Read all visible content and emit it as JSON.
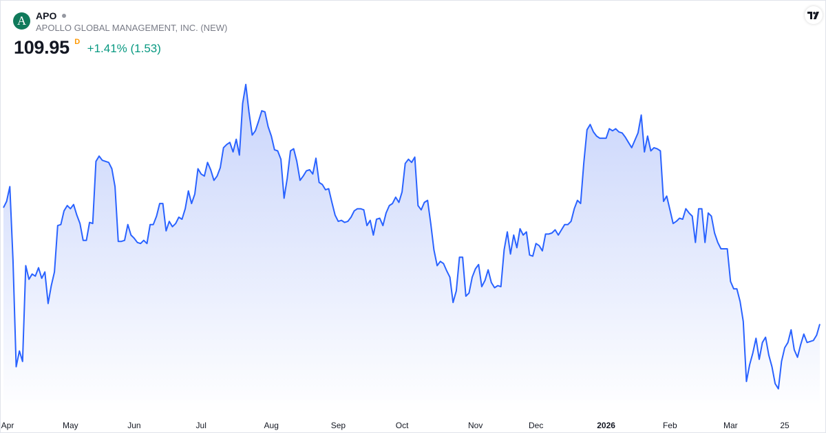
{
  "symbol": {
    "ticker": "APO",
    "logo_letter": "A",
    "company_name": "APOLLO GLOBAL MANAGEMENT, INC. (NEW)",
    "price": "109.95",
    "price_flag": "D",
    "change": "+1.41% (1.53)"
  },
  "colors": {
    "line": "#2962ff",
    "area_top": "#c8d4fb",
    "area_bottom": "#ffffff",
    "change_positive": "#089981",
    "logo_bg": "#107a5b",
    "price_flag": "#ff9800"
  },
  "icons": {
    "logo": "apollo-logo-icon",
    "status": "market-status-dot-icon",
    "brand": "tradingview-logo-icon"
  },
  "chart_data": {
    "type": "area",
    "grid": false,
    "y_axis_visible": false,
    "ylim": [
      103,
      134
    ],
    "x_axis_labels": [
      {
        "text": "Apr",
        "i": 0,
        "bold": false
      },
      {
        "text": "May",
        "i": 21,
        "bold": false
      },
      {
        "text": "Jun",
        "i": 41,
        "bold": false
      },
      {
        "text": "Jul",
        "i": 62,
        "bold": false
      },
      {
        "text": "Aug",
        "i": 84,
        "bold": false
      },
      {
        "text": "Sep",
        "i": 105,
        "bold": false
      },
      {
        "text": "Oct",
        "i": 125,
        "bold": false
      },
      {
        "text": "Nov",
        "i": 148,
        "bold": false
      },
      {
        "text": "Dec",
        "i": 167,
        "bold": false
      },
      {
        "text": "2026",
        "i": 189,
        "bold": true
      },
      {
        "text": "Feb",
        "i": 209,
        "bold": false
      },
      {
        "text": "Mar",
        "i": 228,
        "bold": false
      },
      {
        "text": "25",
        "i": 245,
        "bold": false
      }
    ],
    "series": [
      {
        "values": [
          121.0,
          121.6,
          123.0,
          116.0,
          105.9,
          107.4,
          106.4,
          115.5,
          114.2,
          114.7,
          114.5,
          115.3,
          114.3,
          114.9,
          111.9,
          113.6,
          114.9,
          119.3,
          119.4,
          120.7,
          121.2,
          120.9,
          121.3,
          120.3,
          119.5,
          117.9,
          117.9,
          119.6,
          119.5,
          125.4,
          125.9,
          125.5,
          125.4,
          125.3,
          124.7,
          123.0,
          117.8,
          117.8,
          117.9,
          119.4,
          118.4,
          118.1,
          117.7,
          117.6,
          117.9,
          117.6,
          119.4,
          119.4,
          120.2,
          121.4,
          121.4,
          118.8,
          119.7,
          119.2,
          119.5,
          120.1,
          119.9,
          120.9,
          122.6,
          121.4,
          122.3,
          124.7,
          124.2,
          124.0,
          125.3,
          124.6,
          123.6,
          124.0,
          124.8,
          126.7,
          127.0,
          127.2,
          126.3,
          127.5,
          126.0,
          130.9,
          132.7,
          130.1,
          127.9,
          128.3,
          129.2,
          130.2,
          130.1,
          128.7,
          127.8,
          126.5,
          126.4,
          125.6,
          121.9,
          123.8,
          126.4,
          126.6,
          125.4,
          123.6,
          124.0,
          124.5,
          124.6,
          124.2,
          125.7,
          123.4,
          123.2,
          122.7,
          122.8,
          121.5,
          120.3,
          119.7,
          119.8,
          119.6,
          119.7,
          120.1,
          120.7,
          120.9,
          120.9,
          120.8,
          119.3,
          119.8,
          118.4,
          119.9,
          120.0,
          119.3,
          120.5,
          121.2,
          121.4,
          122.0,
          121.5,
          122.5,
          125.2,
          125.6,
          125.3,
          125.8,
          121.2,
          120.8,
          121.5,
          121.7,
          119.5,
          117.0,
          115.5,
          115.9,
          115.7,
          115.0,
          114.4,
          112.0,
          113.1,
          116.3,
          116.3,
          112.6,
          112.9,
          114.4,
          115.2,
          115.6,
          113.5,
          114.1,
          115.1,
          113.9,
          113.4,
          113.6,
          113.5,
          117.0,
          118.7,
          116.6,
          118.4,
          117.2,
          119.0,
          118.4,
          118.7,
          116.5,
          116.4,
          117.6,
          117.4,
          116.9,
          118.5,
          118.5,
          118.6,
          118.9,
          118.4,
          118.9,
          119.4,
          119.4,
          119.7,
          120.9,
          121.7,
          121.4,
          125.3,
          128.4,
          128.9,
          128.2,
          127.8,
          127.6,
          127.6,
          127.6,
          128.5,
          128.3,
          128.5,
          128.2,
          128.1,
          127.7,
          127.2,
          126.7,
          127.4,
          128.1,
          129.8,
          126.3,
          127.8,
          126.4,
          126.7,
          126.6,
          126.4,
          121.6,
          122.1,
          120.8,
          119.5,
          119.7,
          120.0,
          119.9,
          120.9,
          120.5,
          120.2,
          117.7,
          120.9,
          120.9,
          117.7,
          120.5,
          120.2,
          118.6,
          117.7,
          117.1,
          117.1,
          117.1,
          114.0,
          113.3,
          113.3,
          112.1,
          110.2,
          104.5,
          106.1,
          107.2,
          108.6,
          106.6,
          108.2,
          108.7,
          107.0,
          105.9,
          104.3,
          103.8,
          106.4,
          107.7,
          108.2,
          109.4,
          107.5,
          106.8,
          108.0,
          109.0,
          108.2,
          108.3,
          108.4,
          108.9,
          109.95
        ]
      }
    ]
  }
}
